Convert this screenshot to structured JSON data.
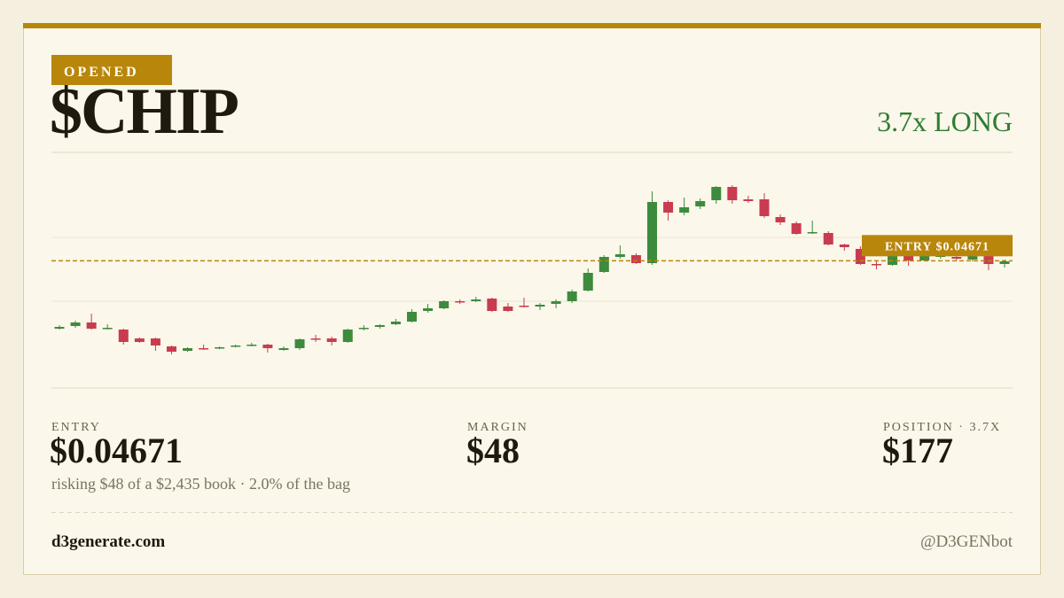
{
  "badge": "OPENED",
  "ticker": "$CHIP",
  "side": "3.7x LONG",
  "chart_data": {
    "type": "candlestick",
    "ylim": [
      0.025,
      0.065
    ],
    "entry": 0.04671,
    "entry_label": "ENTRY $0.04671",
    "entry_color": "#b8860b",
    "up_color": "#3d8b3d",
    "down_color": "#c93c50",
    "open": [
      0.03444,
      0.03492,
      0.03556,
      0.03444,
      0.03428,
      0.03268,
      0.03268,
      0.03124,
      0.03044,
      0.03092,
      0.03092,
      0.03124,
      0.0314,
      0.03156,
      0.0306,
      0.03092,
      0.03268,
      0.03268,
      0.03204,
      0.03444,
      0.03476,
      0.03524,
      0.03572,
      0.03764,
      0.03812,
      0.0394,
      0.0394,
      0.03988,
      0.03844,
      0.0386,
      0.03844,
      0.03892,
      0.0394,
      0.04132,
      0.04468,
      0.0474,
      0.04772,
      0.04628,
      0.05732,
      0.0554,
      0.05652,
      0.05764,
      0.06004,
      0.0578,
      0.0578,
      0.0546,
      0.05348,
      0.05172,
      0.05172,
      0.04964,
      0.04884,
      0.04612,
      0.04596,
      0.0482,
      0.04676,
      0.0474,
      0.0474,
      0.04692,
      0.04804,
      0.04612
    ],
    "high": [
      0.03508,
      0.03588,
      0.03716,
      0.03524,
      0.03444,
      0.03284,
      0.03284,
      0.0314,
      0.03108,
      0.03156,
      0.03124,
      0.03156,
      0.03188,
      0.03172,
      0.03124,
      0.03268,
      0.03332,
      0.033,
      0.03444,
      0.03508,
      0.03524,
      0.0362,
      0.03796,
      0.03892,
      0.03956,
      0.03972,
      0.0402,
      0.04004,
      0.03908,
      0.04004,
      0.03908,
      0.03972,
      0.04148,
      0.04532,
      0.04772,
      0.04948,
      0.04804,
      0.05924,
      0.05764,
      0.05812,
      0.05796,
      0.0602,
      0.06036,
      0.05844,
      0.05892,
      0.05508,
      0.0538,
      0.05396,
      0.05204,
      0.0498,
      0.04932,
      0.0466,
      0.049,
      0.04868,
      0.04884,
      0.04836,
      0.04788,
      0.0482,
      0.04836,
      0.04692
    ],
    "low": [
      0.03428,
      0.0346,
      0.03428,
      0.03428,
      0.03156,
      0.03188,
      0.03044,
      0.0298,
      0.03028,
      0.0306,
      0.03076,
      0.03108,
      0.03124,
      0.03012,
      0.03044,
      0.0306,
      0.03204,
      0.0314,
      0.03188,
      0.03412,
      0.03444,
      0.03508,
      0.03556,
      0.03732,
      0.03796,
      0.03892,
      0.03924,
      0.03748,
      0.03748,
      0.03828,
      0.0378,
      0.03812,
      0.03908,
      0.04116,
      0.04452,
      0.04708,
      0.04612,
      0.04596,
      0.05396,
      0.05492,
      0.05604,
      0.057,
      0.057,
      0.05716,
      0.05444,
      0.05316,
      0.0514,
      0.05156,
      0.04948,
      0.04852,
      0.04596,
      0.04516,
      0.0458,
      0.0458,
      0.0466,
      0.04708,
      0.04676,
      0.0466,
      0.045,
      0.04548
    ],
    "close": [
      0.03476,
      0.03556,
      0.03444,
      0.0346,
      0.03204,
      0.03204,
      0.0314,
      0.03028,
      0.03092,
      0.03076,
      0.03108,
      0.0314,
      0.03156,
      0.03092,
      0.03092,
      0.03252,
      0.03252,
      0.03204,
      0.03428,
      0.0346,
      0.03508,
      0.03572,
      0.03748,
      0.03812,
      0.0394,
      0.03924,
      0.03972,
      0.03764,
      0.03764,
      0.03844,
      0.03876,
      0.0394,
      0.04116,
      0.04452,
      0.0474,
      0.04788,
      0.04628,
      0.05732,
      0.0554,
      0.05636,
      0.05748,
      0.06004,
      0.05764,
      0.05748,
      0.05476,
      0.05364,
      0.05156,
      0.05188,
      0.04964,
      0.04916,
      0.04612,
      0.04596,
      0.04804,
      0.04676,
      0.04836,
      0.04772,
      0.04708,
      0.04756,
      0.04612,
      0.0466
    ]
  },
  "stats": [
    {
      "label": "ENTRY",
      "value": "$0.04671"
    },
    {
      "label": "MARGIN",
      "value": "$48"
    },
    {
      "label": "POSITION · 3.7X",
      "value": "$177"
    }
  ],
  "note": "risking $48 of a $2,435 book · 2.0% of the bag",
  "footer": {
    "site": "d3generate.com",
    "handle": "@D3GENbot"
  }
}
